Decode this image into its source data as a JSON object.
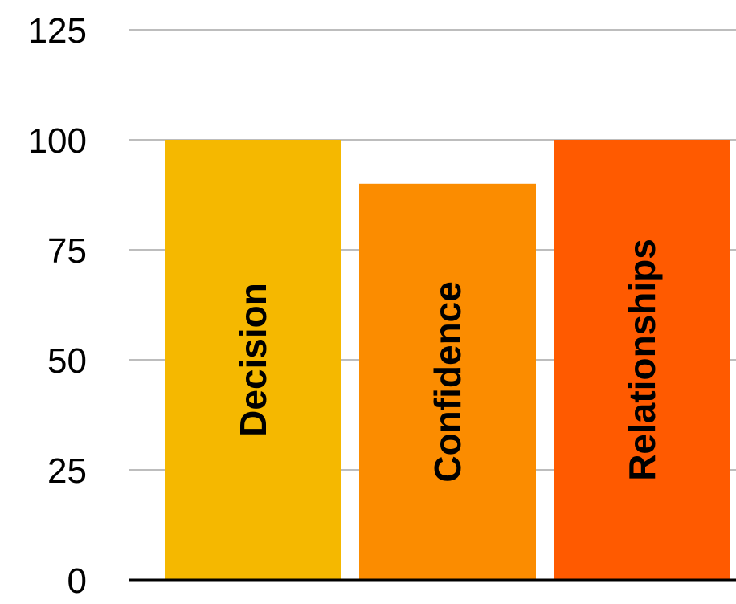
{
  "chart_data": {
    "type": "bar",
    "categories": [
      "Decision",
      "Confidence",
      "Relationships"
    ],
    "values": [
      100,
      90,
      100
    ],
    "colors": [
      "#F5B800",
      "#FB8C00",
      "#FF5A00"
    ],
    "ylim": [
      0,
      125
    ],
    "yticks": [
      0,
      25,
      50,
      75,
      100,
      125
    ],
    "grid": true,
    "label_position": "inside-bar-vertical"
  }
}
